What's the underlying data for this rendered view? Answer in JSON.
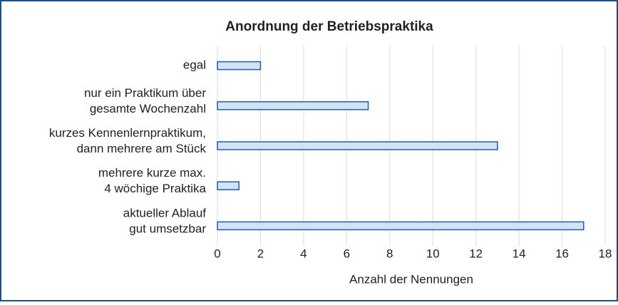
{
  "chart_data": {
    "type": "barh",
    "title": "Anordnung der Betriebspraktika",
    "categories": [
      [
        "egal"
      ],
      [
        "nur ein Praktikum über",
        "gesamte Wochenzahl"
      ],
      [
        "kurzes Kennenlernpraktikum,",
        "dann mehrere am Stück"
      ],
      [
        "mehrere kurze max.",
        "4 wöchige Praktika"
      ],
      [
        "aktueller Ablauf",
        "gut umsetzbar"
      ]
    ],
    "values": [
      2,
      7,
      13,
      1,
      17
    ],
    "color": "#d3e3f5",
    "edge_color": "#1f5fa8",
    "xlabel": "Anzahl der Nennungen",
    "xlim": [
      0,
      18
    ],
    "xticks": [
      0,
      2,
      4,
      6,
      8,
      10,
      12,
      14,
      16,
      18
    ],
    "grid": true
  }
}
